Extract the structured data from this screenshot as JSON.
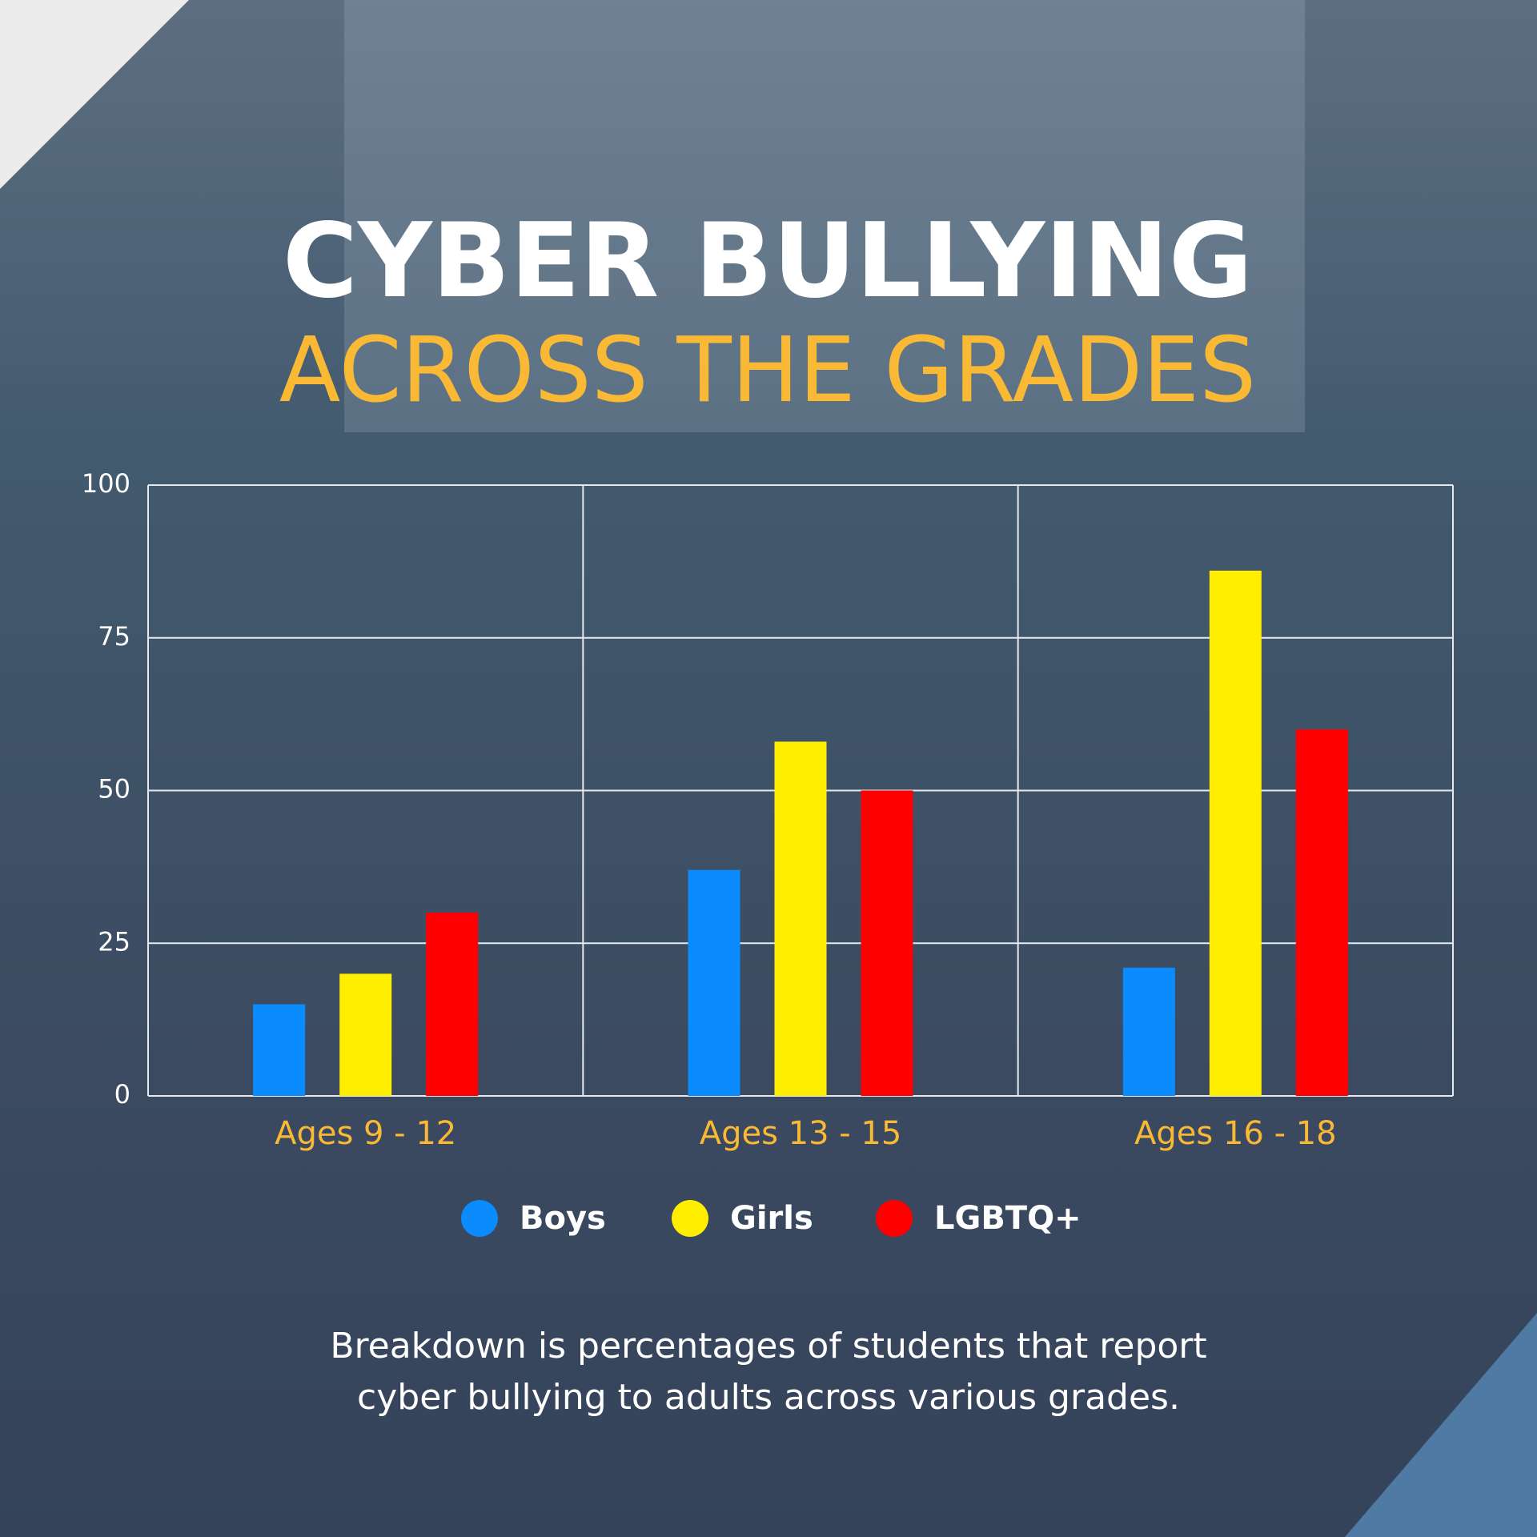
{
  "chart_data": {
    "type": "bar",
    "title": "CYBER BULLYING",
    "subtitle": "ACROSS THE GRADES",
    "note": "Breakdown is percentages of students that report cyber bullying to adults across various grades.",
    "categories": [
      "Ages 9 - 12",
      "Ages 13 - 15",
      "Ages 16 - 18"
    ],
    "series": [
      {
        "name": "Boys",
        "color": "#0a8cff",
        "values": [
          15,
          37,
          21
        ]
      },
      {
        "name": "Girls",
        "color": "#ffee00",
        "values": [
          20,
          58,
          86
        ]
      },
      {
        "name": "LGBTQ+",
        "color": "#ff0000",
        "values": [
          30,
          50,
          60
        ]
      }
    ],
    "ylim": [
      0,
      100
    ],
    "yticks": [
      0,
      25,
      50,
      75,
      100
    ],
    "grid": true
  }
}
